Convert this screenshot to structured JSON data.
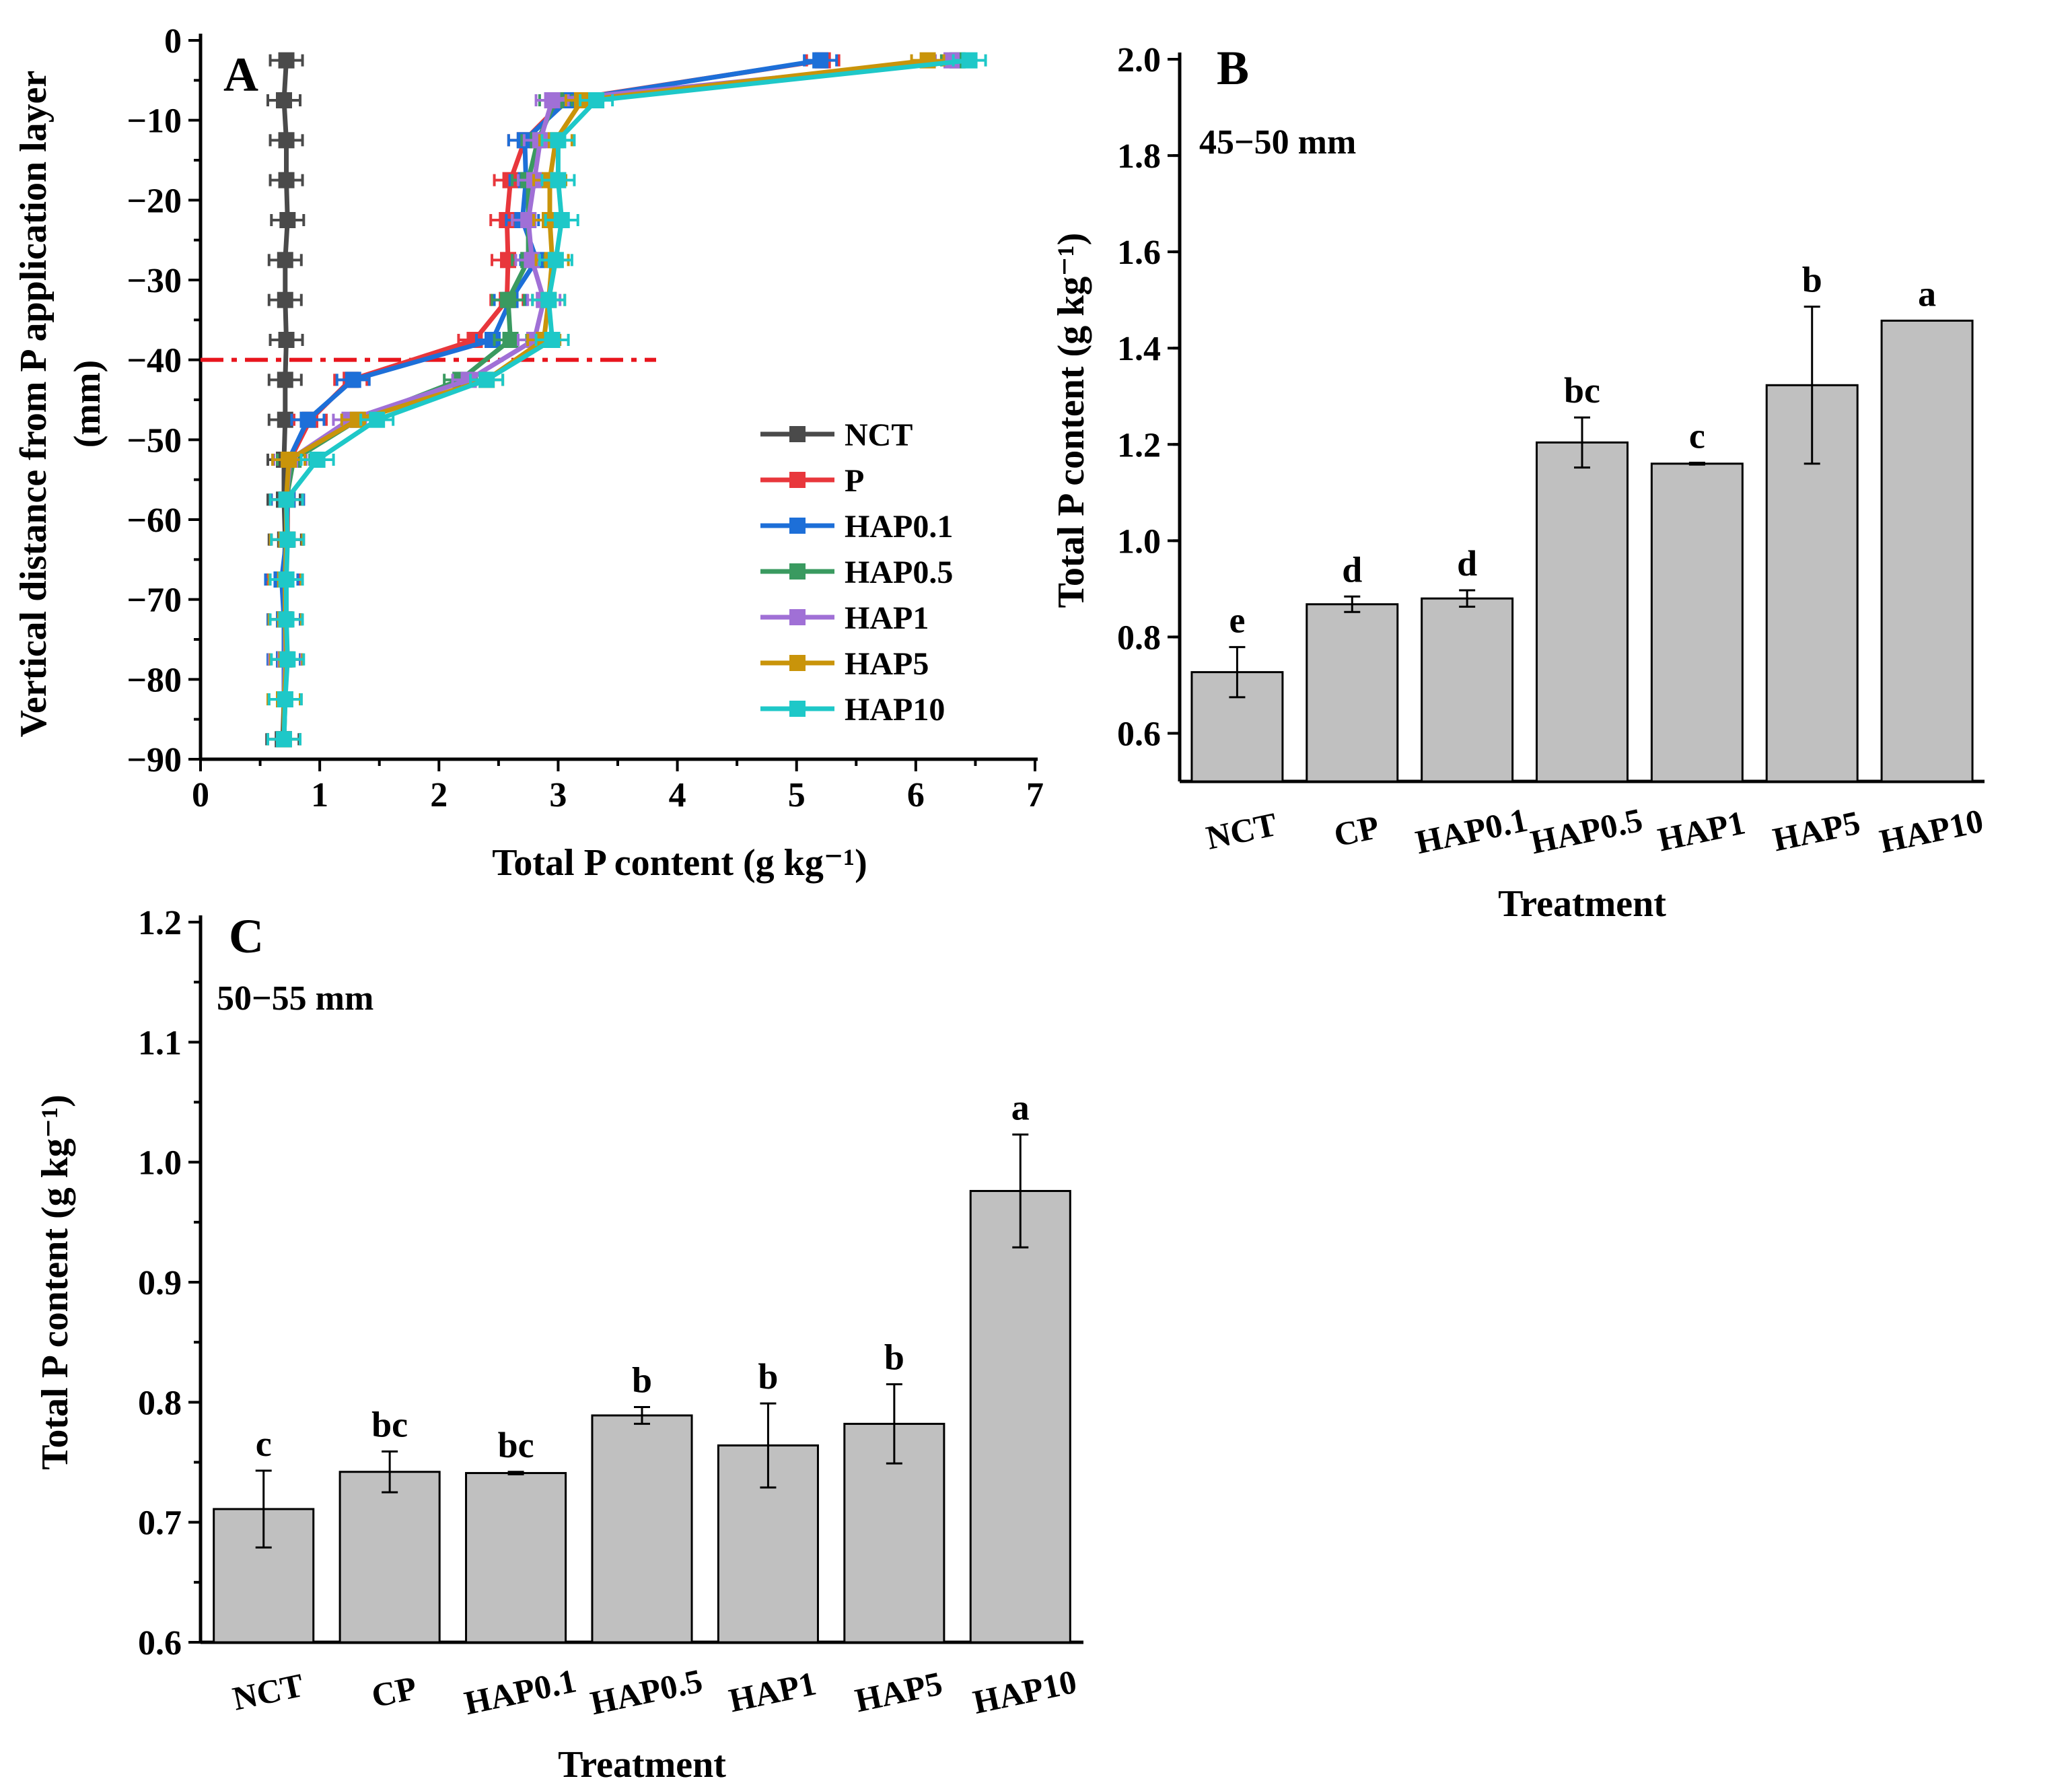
{
  "chart_data": [
    {
      "panel": "A",
      "type": "line",
      "title": "A",
      "xlabel": "Total  P content (g kg⁻¹)",
      "ylabel_line1": "Vertical distance from P application layer",
      "ylabel_line2": "(mm)",
      "xlim": [
        0,
        7
      ],
      "ylim": [
        -90,
        0
      ],
      "x_ticks": [
        0,
        1,
        2,
        3,
        4,
        5,
        6,
        7
      ],
      "y_ticks": [
        0,
        -10,
        -20,
        -30,
        -40,
        -50,
        -60,
        -70,
        -80,
        -90
      ],
      "x_tick_labels": [
        "0",
        "1",
        "2",
        "3",
        "4",
        "5",
        "6",
        "7"
      ],
      "y_tick_labels": [
        "0",
        "−10",
        "−20",
        "−30",
        "−40",
        "−50",
        "−60",
        "−70",
        "−80",
        "−90"
      ],
      "depths": [
        -2.5,
        -7.5,
        -12.5,
        -17.5,
        -22.5,
        -27.5,
        -32.5,
        -37.5,
        -42.5,
        -47.5,
        -52.5,
        -57.5,
        -62.5,
        -67.5,
        -72.5,
        -77.5,
        -82.5,
        -87.5
      ],
      "reference_line": {
        "y": -40,
        "color": "#e8141c",
        "style": "dash-dot"
      },
      "legend_position": "lower-right",
      "series": [
        {
          "name": "NCT",
          "color": "#4a4a4a",
          "values": [
            0.72,
            0.7,
            0.72,
            0.72,
            0.73,
            0.71,
            0.71,
            0.72,
            0.71,
            0.71,
            0.7,
            0.7,
            0.71,
            0.7,
            0.7,
            0.7,
            0.7,
            0.69
          ]
        },
        {
          "name": "P",
          "color": "#e8373c",
          "values": [
            5.22,
            3.05,
            2.72,
            2.6,
            2.57,
            2.58,
            2.57,
            2.3,
            1.26,
            0.92,
            0.75,
            0.73,
            0.73,
            0.7,
            0.7,
            0.7,
            0.7,
            0.7
          ]
        },
        {
          "name": "HAP0.1",
          "color": "#1d6fd8",
          "values": [
            5.2,
            3.08,
            2.72,
            2.73,
            2.7,
            2.82,
            2.6,
            2.45,
            1.28,
            0.9,
            0.74,
            0.73,
            0.72,
            0.68,
            0.7,
            0.7,
            0.7,
            0.7
          ]
        },
        {
          "name": "HAP0.5",
          "color": "#3a9a60",
          "values": [
            6.35,
            2.98,
            2.83,
            2.75,
            2.75,
            2.75,
            2.58,
            2.6,
            2.18,
            1.32,
            0.78,
            0.72,
            0.72,
            0.72,
            0.71,
            0.71,
            0.71,
            0.7
          ]
        },
        {
          "name": "HAP1",
          "color": "#a070d6",
          "values": [
            6.3,
            2.95,
            2.85,
            2.8,
            2.75,
            2.78,
            2.88,
            2.8,
            2.25,
            1.25,
            0.75,
            0.72,
            0.72,
            0.71,
            0.71,
            0.71,
            0.7,
            0.7
          ]
        },
        {
          "name": "HAP5",
          "color": "#c9940a",
          "values": [
            6.1,
            3.2,
            2.98,
            2.93,
            2.93,
            2.95,
            2.92,
            2.88,
            2.4,
            1.32,
            0.74,
            0.72,
            0.72,
            0.71,
            0.71,
            0.72,
            0.7,
            0.7
          ]
        },
        {
          "name": "HAP10",
          "color": "#1ec8c8",
          "values": [
            6.45,
            3.32,
            3.0,
            3.0,
            3.03,
            2.98,
            2.92,
            2.95,
            2.4,
            1.48,
            0.98,
            0.72,
            0.73,
            0.72,
            0.72,
            0.73,
            0.71,
            0.7
          ]
        }
      ]
    },
    {
      "panel": "B",
      "type": "bar",
      "title": "B",
      "annotation": "45−50 mm",
      "xlabel": "Treatment",
      "ylabel": "Total  P content (g kg⁻¹)",
      "ylim": [
        0.5,
        2.0
      ],
      "y_ticks": [
        0.6,
        0.8,
        1.0,
        1.2,
        1.4,
        1.6,
        1.8,
        2.0
      ],
      "y_tick_labels": [
        "0.6",
        "0.8",
        "1.0",
        "1.2",
        "1.4",
        "1.6",
        "1.8",
        "2.0"
      ],
      "categories": [
        "NCT",
        "CP",
        "HAP0.1",
        "HAP0.5",
        "HAP1",
        "HAP5",
        "HAP10"
      ],
      "values": [
        0.727,
        0.868,
        0.88,
        1.204,
        1.16,
        1.323,
        1.457
      ],
      "errors": [
        0.052,
        0.016,
        0.017,
        0.052,
        0.002,
        0.163,
        0.0
      ],
      "significance": [
        "e",
        "d",
        "d",
        "bc",
        "c",
        "b",
        "a"
      ],
      "bar_color": "#c0c0c0"
    },
    {
      "panel": "C",
      "type": "bar",
      "title": "C",
      "annotation": "50−55 mm",
      "xlabel": "Treatment",
      "ylabel": "Total  P content (g kg⁻¹)",
      "ylim": [
        0.6,
        1.2
      ],
      "y_ticks": [
        0.6,
        0.7,
        0.8,
        0.9,
        1.0,
        1.1,
        1.2
      ],
      "y_tick_labels": [
        "0.6",
        "0.7",
        "0.8",
        "0.9",
        "1.0",
        "1.1",
        "1.2"
      ],
      "categories": [
        "NCT",
        "CP",
        "HAP0.1",
        "HAP0.5",
        "HAP1",
        "HAP5",
        "HAP10"
      ],
      "values": [
        0.711,
        0.742,
        0.741,
        0.789,
        0.764,
        0.782,
        0.976
      ],
      "errors": [
        0.032,
        0.017,
        0.001,
        0.007,
        0.035,
        0.033,
        0.047
      ],
      "significance": [
        "c",
        "bc",
        "bc",
        "b",
        "b",
        "b",
        "a"
      ],
      "bar_color": "#c0c0c0"
    }
  ]
}
